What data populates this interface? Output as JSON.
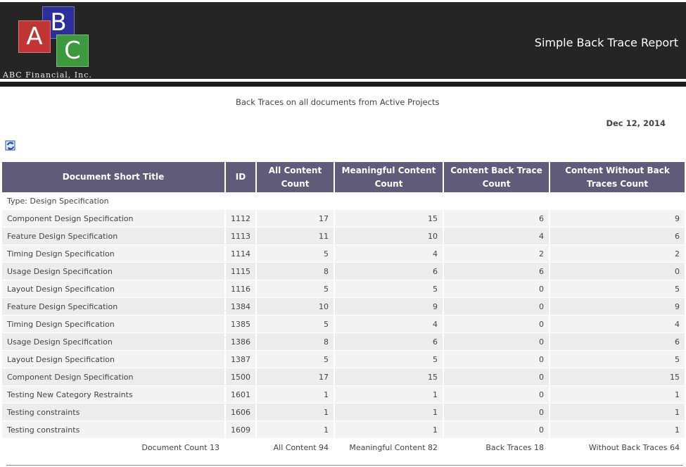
{
  "header": {
    "logo": {
      "letters": [
        "A",
        "B",
        "C"
      ],
      "company": "ABC Financial, Inc."
    },
    "report_title": "Simple Back Trace Report",
    "background": "#252525"
  },
  "subtitle": "Back Traces on all documents from Active Projects",
  "date": "Dec 12, 2014",
  "refresh_icon": "refresh-icon",
  "table": {
    "header_color": "#5f5b78",
    "columns": [
      "Document Short Title",
      "ID",
      "All Content Count",
      "Meaningful Content Count",
      "Content Back Trace Count",
      "Content Without Back Traces Count"
    ],
    "group_label": "Type: Design Specification",
    "rows": [
      [
        "Component Design Specification",
        "1112",
        "17",
        "15",
        "6",
        "9"
      ],
      [
        "Feature Design Specification",
        "1113",
        "11",
        "10",
        "4",
        "6"
      ],
      [
        "Timing Design Specification",
        "1114",
        "5",
        "4",
        "2",
        "2"
      ],
      [
        "Usage Design Specification",
        "1115",
        "8",
        "6",
        "6",
        "0"
      ],
      [
        "Layout Design Specification",
        "1116",
        "5",
        "5",
        "0",
        "5"
      ],
      [
        "Feature Design Specification",
        "1384",
        "10",
        "9",
        "0",
        "9"
      ],
      [
        "Timing Design Specification",
        "1385",
        "5",
        "4",
        "0",
        "4"
      ],
      [
        "Usage Design Specification",
        "1386",
        "8",
        "6",
        "0",
        "6"
      ],
      [
        "Layout Design Specification",
        "1387",
        "5",
        "5",
        "0",
        "5"
      ],
      [
        "Component Design Specification",
        "1500",
        "17",
        "15",
        "0",
        "15"
      ],
      [
        "Testing New Category Restraints",
        "1601",
        "1",
        "1",
        "0",
        "1"
      ],
      [
        "Testing constraints",
        "1606",
        "1",
        "1",
        "0",
        "1"
      ],
      [
        "Testing constraints",
        "1609",
        "1",
        "1",
        "0",
        "1"
      ]
    ],
    "totals": {
      "document_count": "Document Count 13",
      "all_content": "All Content 94",
      "meaningful_content": "Meaningful Content 82",
      "back_traces": "Back Traces 18",
      "without_back_traces": "Without Back Traces 64"
    }
  }
}
